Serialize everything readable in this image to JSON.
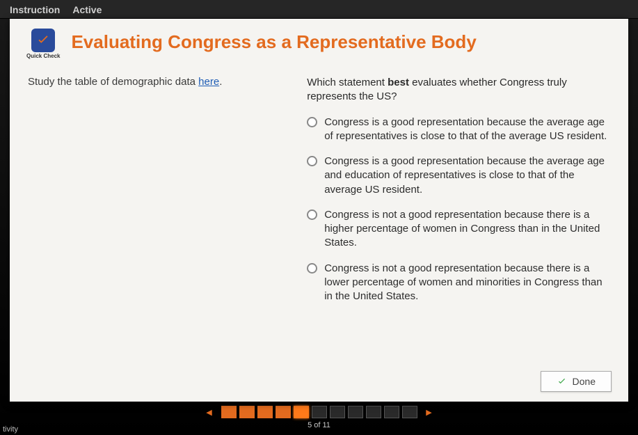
{
  "colors": {
    "accent": "#e36b1f",
    "link": "#1f5db5",
    "card_bg": "#f5f4f1",
    "frame_bg": "#0a0a0a",
    "check_green": "#3fa84a",
    "badge_bg": "#2a4b9b"
  },
  "tabs": {
    "instruction": "Instruction",
    "active": "Active"
  },
  "header": {
    "badge_label": "Quick Check",
    "title": "Evaluating Congress as a Representative Body"
  },
  "left": {
    "prompt_prefix": "Study the table of demographic data ",
    "link_text": "here",
    "prompt_suffix": "."
  },
  "question": {
    "stem_prefix": "Which statement ",
    "stem_bold": "best",
    "stem_suffix": " evaluates whether Congress truly represents the US?",
    "options": [
      "Congress is a good representation because the average age of representatives is close to that of the average US resident.",
      "Congress is a good representation because the average age and education of representatives is close to that of the average US resident.",
      "Congress is not a good representation because there is a higher percentage of women in Congress than in the United States.",
      "Congress is not a good representation because there is a lower percentage of women and minorities in Congress than in the United States."
    ]
  },
  "footer": {
    "done_label": "Done"
  },
  "nav": {
    "total": 11,
    "current": 5,
    "counter_label": "5 of 11",
    "box_states": [
      "done",
      "done",
      "done",
      "done",
      "current",
      "todo",
      "todo",
      "todo",
      "todo",
      "todo",
      "todo"
    ]
  },
  "corner": "tivity"
}
